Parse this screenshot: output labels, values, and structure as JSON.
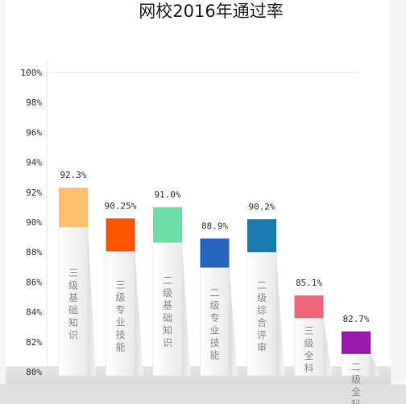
{
  "chart_data": {
    "type": "bar",
    "title": "网校2016年通过率",
    "categories": [
      "三级基础知识",
      "三级专业技能",
      "二级基础知识",
      "二级专业技能",
      "二级综合评审",
      "三级全科",
      "二级全科"
    ],
    "values": [
      92.3,
      90.25,
      91.0,
      88.9,
      90.2,
      85.1,
      82.7
    ],
    "value_labels": [
      "92.3%",
      "90.25%",
      "91.0%",
      "88.9%",
      "90.2%",
      "85.1%",
      "82.7%"
    ],
    "colors": [
      "#FFBF6E",
      "#FF5500",
      "#6ADFA6",
      "#2765C0",
      "#1A7BAE",
      "#F0647A",
      "#9A1AB0"
    ],
    "ylim": [
      80,
      100
    ],
    "yticks": [
      80,
      82,
      84,
      86,
      88,
      90,
      92,
      94,
      96,
      98,
      100
    ],
    "ytick_labels": [
      "80%",
      "82%",
      "84%",
      "86%",
      "88%",
      "90%",
      "92%",
      "94%",
      "96%",
      "98%",
      "100%"
    ],
    "xlabel": "",
    "ylabel": "",
    "grid": false,
    "legend": "none"
  }
}
